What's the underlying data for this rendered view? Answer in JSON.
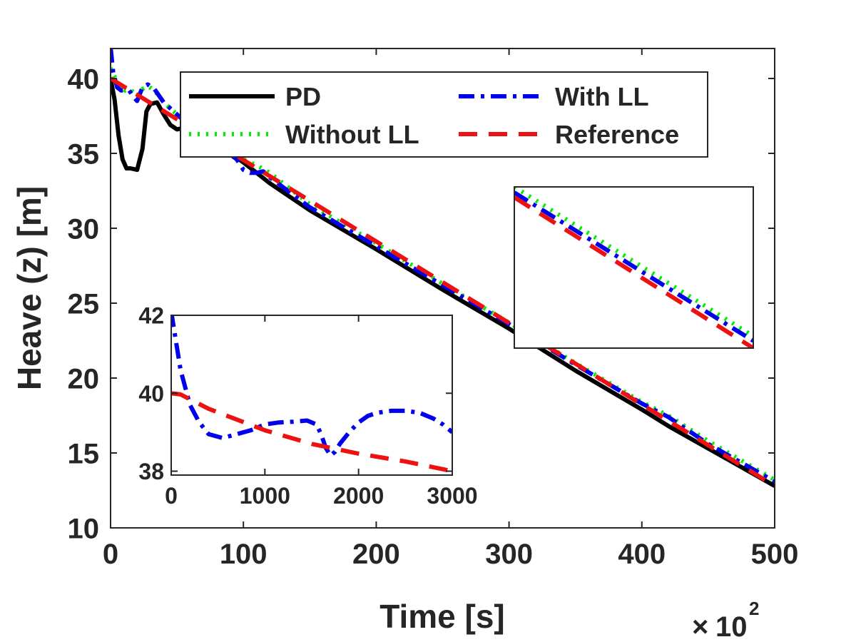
{
  "chart_data": [
    {
      "type": "line",
      "title": "",
      "xlabel": "Time [s]",
      "ylabel": "Heave (z) [m]",
      "x_exponent_label": "10",
      "x_exponent_power": "2",
      "x_multiplier_symbol": "×",
      "xlim": [
        0,
        500
      ],
      "ylim": [
        10,
        42
      ],
      "xticks": [
        0,
        100,
        200,
        300,
        400,
        500
      ],
      "yticks": [
        10,
        15,
        20,
        25,
        30,
        35,
        40
      ],
      "grid": false,
      "legend_placement": "top-center",
      "legend_columns": 2,
      "series": [
        {
          "name": "PD",
          "color": "#000000",
          "style": "solid",
          "x": [
            0,
            3,
            6,
            9,
            12,
            15,
            20,
            24,
            27,
            30,
            35,
            40,
            45,
            50,
            60,
            70,
            80,
            100,
            120,
            150,
            200,
            250,
            300,
            350,
            400,
            420,
            450,
            500
          ],
          "y": [
            40.0,
            38.6,
            36.2,
            34.6,
            34.0,
            34.0,
            33.9,
            35.3,
            37.8,
            38.3,
            38.4,
            37.6,
            36.9,
            36.6,
            36.8,
            36.4,
            35.6,
            34.4,
            33.0,
            31.2,
            28.6,
            25.9,
            23.3,
            20.5,
            17.9,
            16.8,
            15.3,
            12.8
          ]
        },
        {
          "name": "Without LL",
          "color": "#00ee00",
          "style": "dotted",
          "x": [
            0,
            2,
            5,
            8,
            11,
            14,
            17,
            20,
            24,
            28,
            33,
            40,
            50,
            60,
            80,
            100,
            110,
            120,
            150,
            200,
            250,
            300,
            350,
            400,
            420,
            450,
            500
          ],
          "y": [
            40.7,
            40.3,
            39.8,
            39.4,
            39.2,
            39.3,
            39.1,
            38.8,
            39.3,
            39.5,
            39.2,
            38.4,
            37.6,
            36.9,
            35.8,
            34.6,
            34.2,
            33.7,
            31.6,
            29.0,
            26.3,
            23.7,
            21.0,
            18.4,
            17.5,
            15.8,
            13.2
          ]
        },
        {
          "name": "With LL",
          "color": "#0000ee",
          "style": "dashdot",
          "x": [
            0,
            2,
            5,
            8,
            11,
            14,
            17,
            20,
            24,
            28,
            33,
            40,
            50,
            60,
            80,
            95,
            100,
            105,
            110,
            115,
            120,
            150,
            200,
            250,
            300,
            350,
            400,
            420,
            450,
            500
          ],
          "y": [
            42.1,
            40.4,
            39.4,
            39.2,
            39.2,
            39.2,
            38.8,
            38.5,
            39.4,
            39.6,
            39.3,
            38.4,
            37.6,
            36.8,
            35.6,
            34.6,
            33.9,
            33.7,
            33.7,
            33.8,
            33.4,
            31.4,
            28.8,
            26.2,
            23.6,
            20.9,
            18.3,
            17.4,
            15.6,
            13.1
          ]
        },
        {
          "name": "Reference",
          "color": "#ee1111",
          "style": "dashed",
          "x": [
            0,
            500
          ],
          "y": [
            40.0,
            12.8
          ]
        }
      ]
    },
    {
      "type": "line",
      "title": "",
      "xlabel": "",
      "ylabel": "",
      "xlim": [
        0,
        3000
      ],
      "ylim": [
        37.9,
        42.0
      ],
      "xticks": [
        0,
        1000,
        2000,
        3000
      ],
      "yticks": [
        38,
        40,
        42
      ],
      "grid": false,
      "series": [
        {
          "color": "#0000ee",
          "style": "dashdot",
          "x": [
            0,
            100,
            200,
            300,
            400,
            550,
            700,
            850,
            1000,
            1150,
            1300,
            1450,
            1550,
            1600,
            1650,
            1700,
            1750,
            1800,
            1900,
            2000,
            2100,
            2200,
            2350,
            2500,
            2650,
            2800,
            2900,
            3000
          ],
          "y": [
            42.1,
            40.6,
            39.7,
            39.25,
            38.95,
            38.85,
            38.95,
            39.05,
            39.2,
            39.25,
            39.27,
            39.3,
            39.2,
            38.95,
            38.6,
            38.4,
            38.5,
            38.7,
            39.0,
            39.25,
            39.42,
            39.5,
            39.55,
            39.55,
            39.5,
            39.35,
            39.2,
            39.0
          ]
        },
        {
          "color": "#ee1111",
          "style": "dashed",
          "x": [
            0,
            100,
            400,
            1000,
            1500,
            2000,
            2500,
            3000
          ],
          "y": [
            40.0,
            39.97,
            39.6,
            39.05,
            38.7,
            38.45,
            38.25,
            38.0
          ]
        }
      ]
    },
    {
      "type": "line",
      "title": "",
      "xlabel": "",
      "ylabel": "",
      "xlim": [
        0,
        1
      ],
      "ylim": [
        0,
        1
      ],
      "xticks": [],
      "yticks": [],
      "grid": false,
      "series": [
        {
          "color": "#00ee00",
          "style": "dotted",
          "x": [
            0,
            1
          ],
          "y": [
            1.0,
            0.075
          ]
        },
        {
          "color": "#0000ee",
          "style": "dashdot",
          "x": [
            0,
            1
          ],
          "y": [
            0.965,
            0.045
          ]
        },
        {
          "color": "#ee1111",
          "style": "dashed",
          "x": [
            0,
            1
          ],
          "y": [
            0.935,
            0.0
          ]
        }
      ]
    }
  ]
}
